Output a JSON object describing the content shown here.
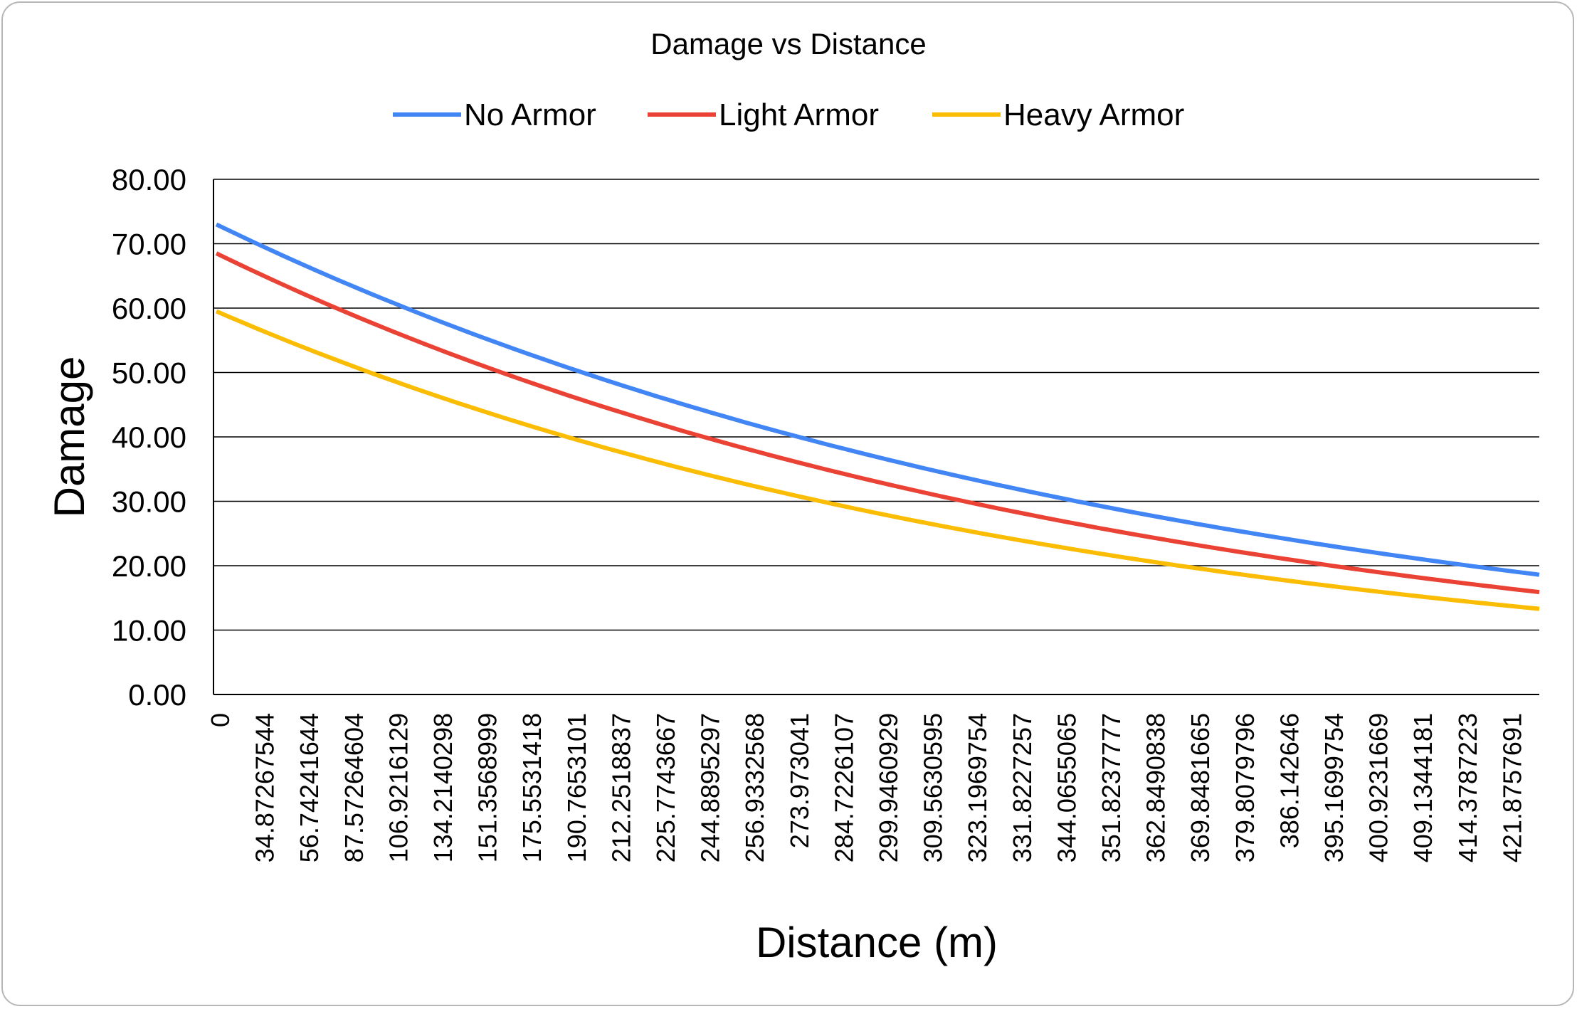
{
  "chart_data": {
    "type": "line",
    "title": "Damage vs Distance",
    "xlabel": "Distance (m)",
    "ylabel": "Damage",
    "ylim": [
      0,
      80
    ],
    "y_ticks": [
      "0.00",
      "10.00",
      "20.00",
      "30.00",
      "40.00",
      "50.00",
      "60.00",
      "70.00",
      "80.00"
    ],
    "grid": true,
    "legend_position": "top",
    "x_tick_labels": [
      "0",
      "34.87267544",
      "56.74241644",
      "87.57264604",
      "106.9216129",
      "134.2140298",
      "151.3568999",
      "175.5531418",
      "190.7653101",
      "212.2518837",
      "225.7743667",
      "244.8895297",
      "256.9332568",
      "273.973041",
      "284.7226107",
      "299.9460929",
      "309.5630595",
      "323.1969754",
      "331.8227257",
      "344.0655065",
      "351.8237777",
      "362.8490838",
      "369.8481665",
      "379.8079796",
      "386.142646",
      "395.1699754",
      "400.9231669",
      "409.1344181",
      "414.3787223",
      "421.8757691"
    ],
    "series": [
      {
        "name": "No Armor",
        "color": "#4285F4",
        "start": 73.0,
        "end": 18.6
      },
      {
        "name": "Light Armor",
        "color": "#EA4335",
        "start": 68.5,
        "end": 15.9
      },
      {
        "name": "Heavy Armor",
        "color": "#FBBC04",
        "start": 59.5,
        "end": 13.3
      }
    ],
    "point_count": 120
  }
}
